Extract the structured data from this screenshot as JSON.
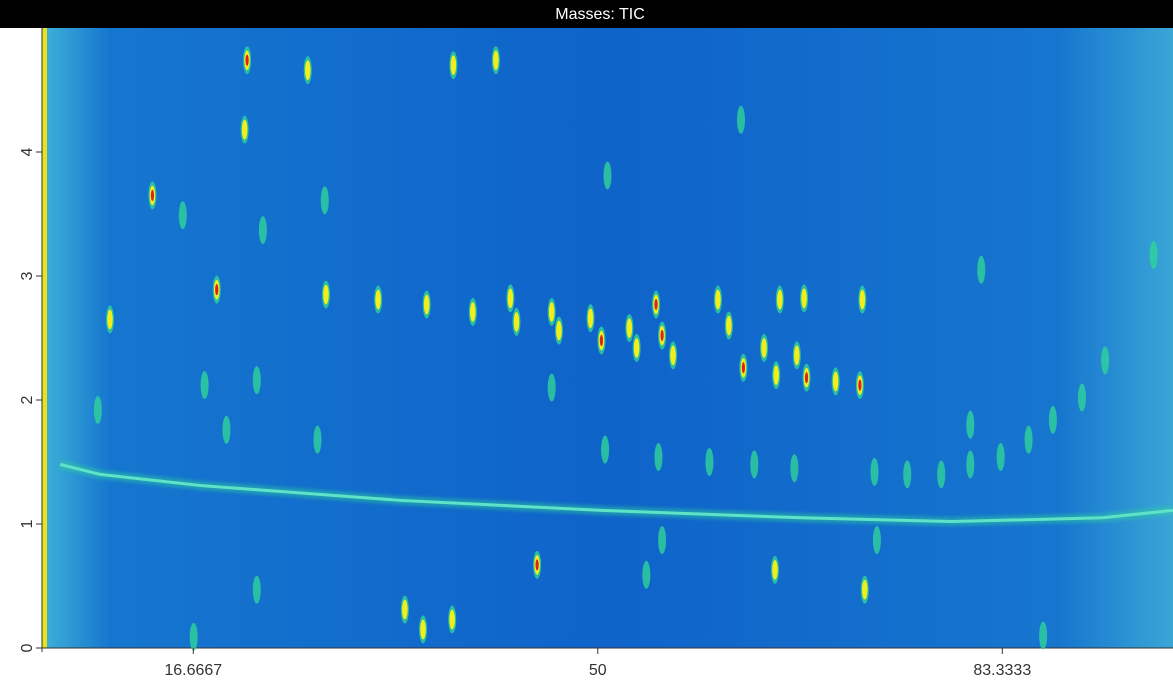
{
  "chart_data": {
    "type": "scatter",
    "title": "Masses: TIC",
    "xlim": [
      4.2,
      97.4
    ],
    "ylim": [
      0,
      5
    ],
    "xticks": [
      16.6667,
      50,
      83.3333
    ],
    "yticks": [
      0,
      1,
      2,
      3,
      4
    ],
    "background": "#0f63c9",
    "colormap": [
      "#2fd39a",
      "#f1ee1c",
      "#e0201a"
    ],
    "peaks": {
      "x": [
        21.1,
        20.9,
        13.3,
        9.8,
        18.6,
        27.6,
        31.9,
        35.9,
        39.7,
        42.8,
        43.3,
        46.2,
        46.8,
        49.4,
        50.3,
        52.6,
        53.2,
        54.8,
        55.3,
        56.2,
        59.9,
        60.8,
        62.0,
        63.7,
        64.7,
        65.0,
        66.4,
        67.2,
        67.0,
        69.6,
        71.6,
        71.8,
        45.0,
        34.1,
        64.6,
        72.0,
        26.1,
        38.1,
        41.6,
        61.8,
        50.8,
        22.4,
        15.8,
        27.5,
        81.6,
        80.7,
        87.5,
        73.0,
        55.3,
        19.4,
        26.9,
        17.6,
        21.9,
        8.8,
        46.2,
        50.6,
        55.0,
        59.2,
        62.9,
        66.2,
        72.8,
        75.5,
        78.3,
        80.7,
        83.2,
        85.5,
        89.9,
        91.8,
        95.8,
        86.7,
        16.7,
        21.9,
        38.0,
        54.0,
        35.6
      ],
      "y": [
        4.74,
        4.18,
        3.65,
        2.65,
        2.89,
        2.85,
        2.81,
        2.77,
        2.71,
        2.82,
        2.63,
        2.71,
        2.56,
        2.66,
        2.48,
        2.58,
        2.42,
        2.77,
        2.52,
        2.36,
        2.81,
        2.6,
        2.26,
        2.42,
        2.2,
        2.81,
        2.36,
        2.18,
        2.82,
        2.15,
        2.12,
        2.81,
        0.67,
        0.31,
        0.63,
        0.47,
        4.66,
        4.7,
        4.74,
        4.26,
        3.81,
        3.37,
        3.49,
        3.61,
        3.05,
        1.8,
        1.84,
        0.87,
        0.87,
        1.76,
        1.68,
        2.12,
        2.16,
        1.92,
        2.1,
        1.6,
        1.54,
        1.5,
        1.48,
        1.45,
        1.42,
        1.4,
        1.4,
        1.48,
        1.54,
        1.68,
        2.02,
        2.32,
        3.17,
        0.1,
        0.09,
        0.47,
        0.23,
        0.59,
        0.15
      ],
      "intensity": [
        3,
        2,
        3,
        2,
        3,
        2,
        2,
        2,
        2,
        2,
        2,
        2,
        2,
        2,
        3,
        2,
        2,
        3,
        3,
        2,
        2,
        2,
        3,
        2,
        2,
        2,
        2,
        3,
        2,
        2,
        3,
        2,
        3,
        2,
        2,
        2,
        2,
        2,
        2,
        1,
        1,
        1,
        1,
        1,
        1,
        1,
        1,
        1,
        1,
        1,
        1,
        1,
        1,
        1,
        1,
        1,
        1,
        1,
        1,
        1,
        1,
        1,
        1,
        1,
        1,
        1,
        1,
        1,
        1,
        1,
        1,
        1,
        2,
        1,
        2
      ]
    },
    "band": {
      "x": [
        5.7,
        9.0,
        17.3,
        33.8,
        50.3,
        66.8,
        79.2,
        91.6,
        97.4
      ],
      "y": [
        1.48,
        1.4,
        1.31,
        1.19,
        1.11,
        1.05,
        1.02,
        1.05,
        1.11
      ]
    }
  }
}
